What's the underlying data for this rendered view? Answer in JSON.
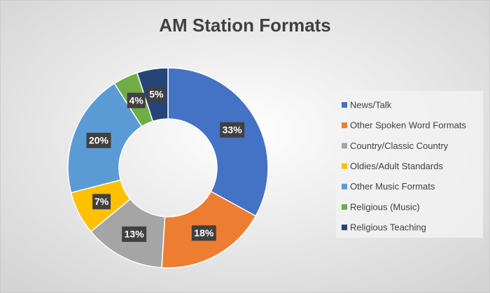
{
  "chart_data": {
    "type": "donut",
    "title": "AM Station Formats",
    "categories": [
      "News/Talk",
      "Other Spoken Word Formats",
      "Country/Classic Country",
      "Oldies/Adult Standards",
      "Other Music Formats",
      "Religious (Music)",
      "Religious Teaching"
    ],
    "values": [
      33,
      18,
      13,
      7,
      20,
      4,
      5
    ],
    "value_labels": [
      "33%",
      "18%",
      "13%",
      "7%",
      "20%",
      "4%",
      "5%"
    ],
    "colors": [
      "#4472c4",
      "#ed7d31",
      "#a5a5a5",
      "#ffc000",
      "#5b9bd5",
      "#70ad47",
      "#264478"
    ],
    "legend": "right"
  }
}
